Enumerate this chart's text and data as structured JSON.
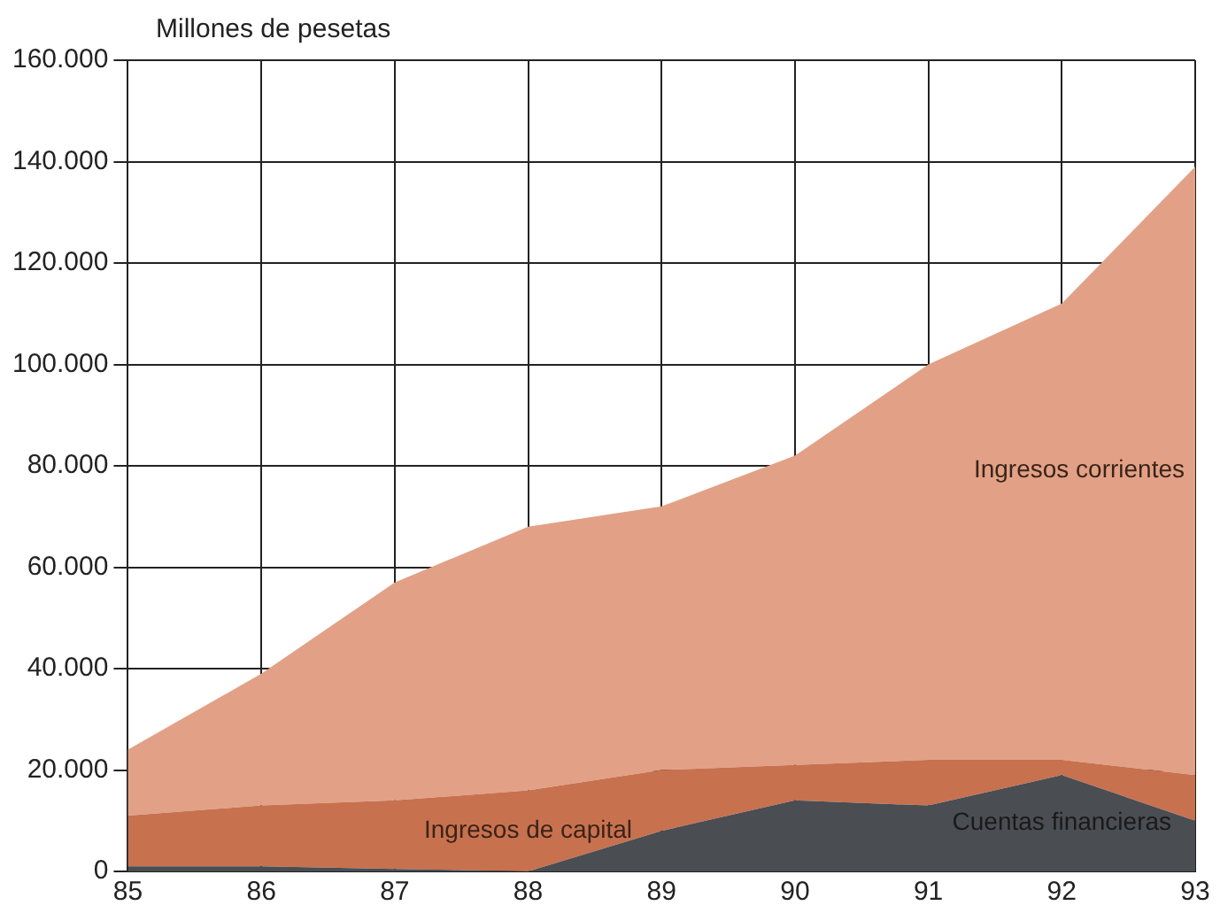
{
  "chart_data": {
    "type": "area",
    "stacked": true,
    "ylabel": "Millones de pesetas",
    "x": [
      85,
      86,
      87,
      88,
      89,
      90,
      91,
      92,
      93
    ],
    "series": [
      {
        "name": "Cuentas financieras",
        "color": "#4a4d52",
        "values": [
          1000,
          1000,
          500,
          0,
          8000,
          14000,
          13000,
          19000,
          10000
        ]
      },
      {
        "name": "Ingresos de capital",
        "color": "#c8714f",
        "values": [
          10000,
          12000,
          13500,
          16000,
          12000,
          7000,
          9000,
          3000,
          9000
        ]
      },
      {
        "name": "Ingresos corrientes",
        "color": "#e2a187",
        "values": [
          13000,
          26000,
          43000,
          52000,
          52000,
          61000,
          78000,
          90000,
          120000
        ]
      }
    ],
    "xlim": [
      85,
      93
    ],
    "xticks": [
      85,
      86,
      87,
      88,
      89,
      90,
      91,
      92,
      93
    ],
    "ylim": [
      0,
      160000
    ],
    "yticks": [
      {
        "value": 0,
        "label": "0"
      },
      {
        "value": 20000,
        "label": "20.000"
      },
      {
        "value": 40000,
        "label": "40.000"
      },
      {
        "value": 60000,
        "label": "60.000"
      },
      {
        "value": 80000,
        "label": "80.000"
      },
      {
        "value": 100000,
        "label": "100.000"
      },
      {
        "value": 120000,
        "label": "120.000"
      },
      {
        "value": 140000,
        "label": "140.000"
      },
      {
        "value": 160000,
        "label": "160.000"
      }
    ],
    "grid": true,
    "legend": false
  }
}
